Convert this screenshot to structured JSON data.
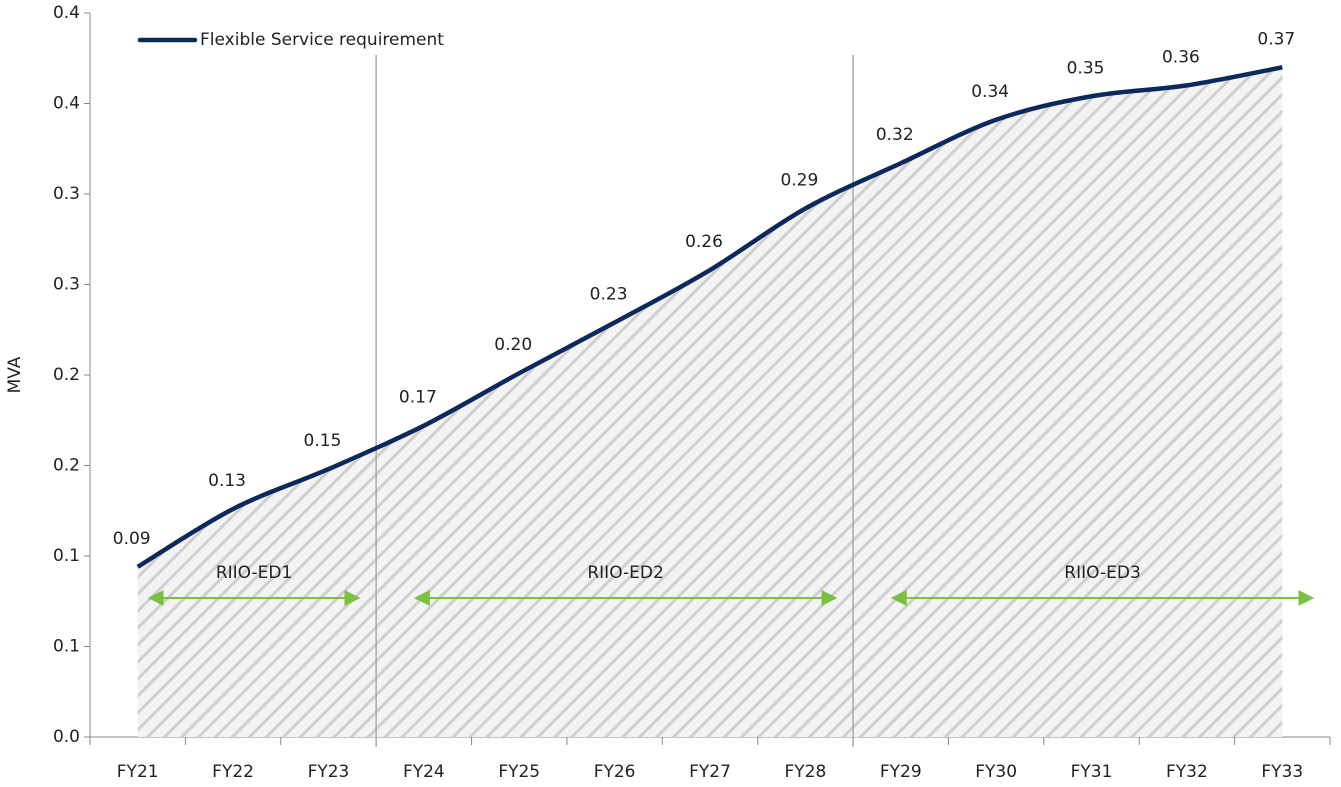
{
  "chart_data": {
    "type": "line",
    "y_label": "MVA",
    "categories": [
      "FY21",
      "FY22",
      "FY23",
      "FY24",
      "FY25",
      "FY26",
      "FY27",
      "FY28",
      "FY29",
      "FY30",
      "FY31",
      "FY32",
      "FY33"
    ],
    "series": [
      {
        "name": "Flexible Service requirement",
        "color": "#0b2a5b",
        "values": [
          0.094,
          0.126,
          0.148,
          0.172,
          0.201,
          0.229,
          0.258,
          0.292,
          0.317,
          0.341,
          0.354,
          0.36,
          0.37
        ],
        "value_labels": [
          "0.09",
          "0.13",
          "0.15",
          "0.17",
          "0.20",
          "0.23",
          "0.26",
          "0.29",
          "0.32",
          "0.34",
          "0.35",
          "0.36",
          "0.37"
        ]
      }
    ],
    "ylim": [
      0,
      0.4
    ],
    "yticks": [
      {
        "value": 0,
        "label": "0.0"
      },
      {
        "value": 0.05,
        "label": "0.1"
      },
      0.1,
      {
        "value": 0.15,
        "label": "0.2"
      },
      0.2,
      {
        "value": 0.25,
        "label": "0.3"
      },
      0.3,
      {
        "value": 0.35,
        "label": "0.4"
      },
      0.4
    ],
    "periods": [
      {
        "name": "RIIO-ED1",
        "from": "FY21",
        "to": "FY23"
      },
      {
        "name": "RIIO-ED2",
        "from": "FY24",
        "to": "FY28"
      },
      {
        "name": "RIIO-ED3",
        "from": "FY29",
        "to": "FY33"
      }
    ],
    "period_color": "#7ac143",
    "fill_pattern": "hatch",
    "legend": "top-left"
  }
}
